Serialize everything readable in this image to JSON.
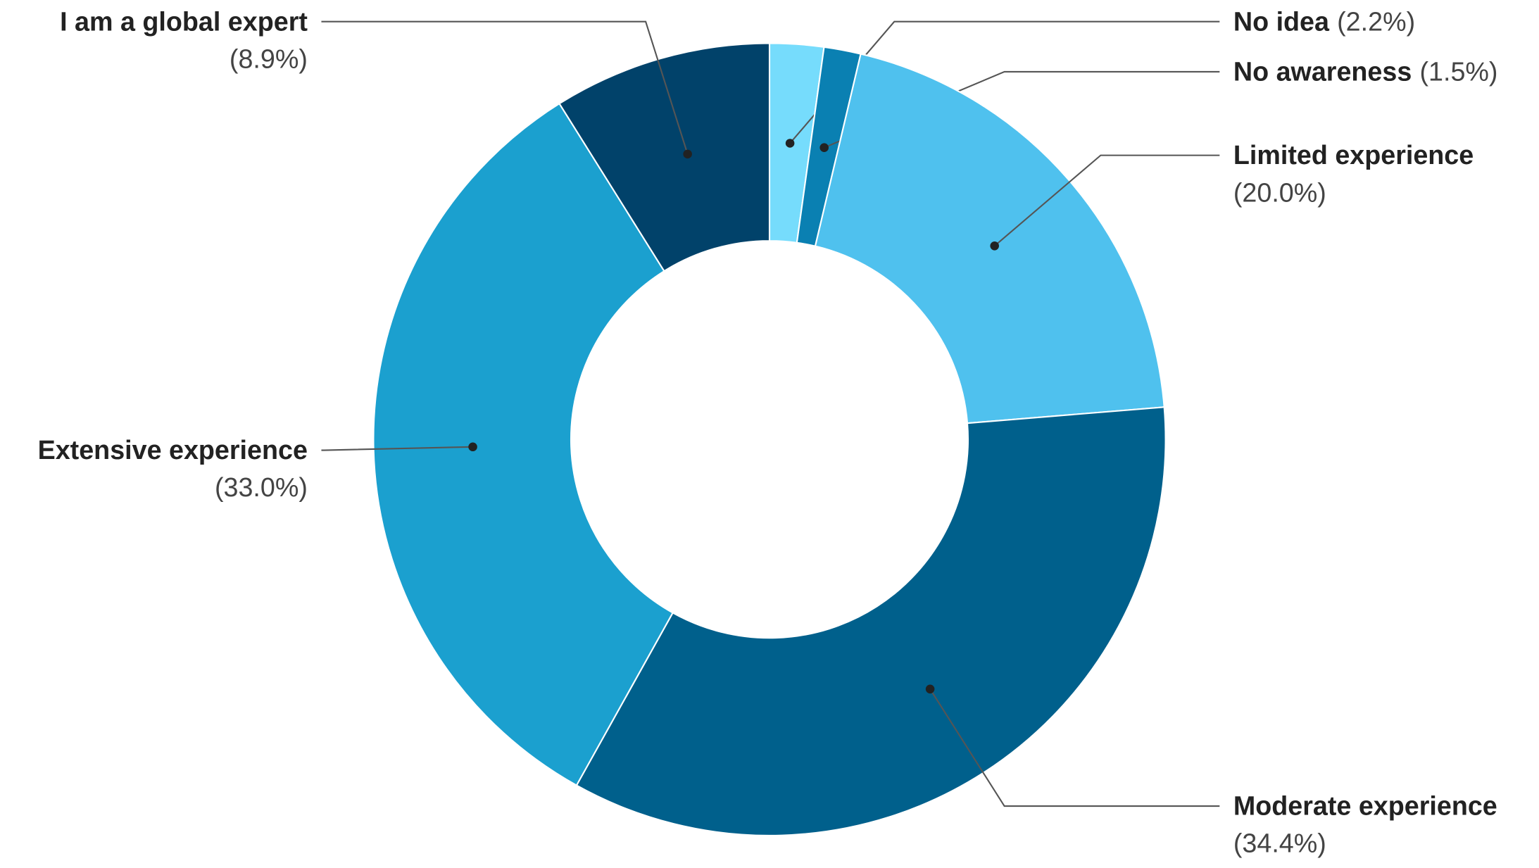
{
  "chart_data": {
    "type": "pie",
    "donut": true,
    "categories": [
      "No idea",
      "No awareness",
      "Limited experience",
      "Moderate experience",
      "Extensive experience",
      "I am a global expert"
    ],
    "values": [
      2.2,
      1.5,
      20.0,
      34.4,
      33.0,
      8.9
    ],
    "value_labels": [
      "(2.2%)",
      "(1.5%)",
      "(20.0%)",
      "(34.4%)",
      "(33.0%)",
      "(8.9%)"
    ],
    "colors": [
      "#76dcfc",
      "#0a80b2",
      "#4fc1ee",
      "#00608c",
      "#1ba0cf",
      "#01426a"
    ]
  }
}
